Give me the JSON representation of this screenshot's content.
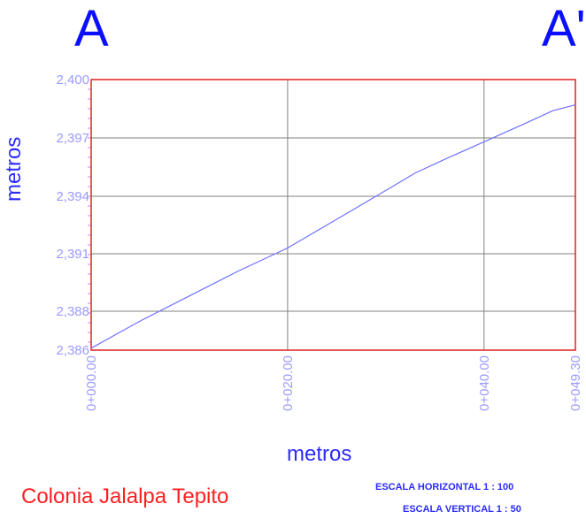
{
  "section": {
    "start_label": "A",
    "end_label": "A'"
  },
  "labels": {
    "ylabel": "metros",
    "xlabel": "metros",
    "place": "Colonia Jalalpa Tepito",
    "scale_horizontal": "ESCALA HORIZONTAL 1 : 100",
    "scale_vertical": "ESCALA VERTICAL 1 : 50"
  },
  "colors": {
    "frame": "#e02020",
    "grid": "#808080",
    "line": "#7070ff",
    "tick_text": "#9a9aff"
  },
  "chart_data": {
    "type": "line",
    "xlabel": "metros",
    "ylabel": "metros",
    "xlim": [
      0,
      49.3
    ],
    "ylim": [
      2386,
      2400
    ],
    "x_ticks": [
      0,
      20,
      40,
      49.3
    ],
    "x_tick_labels": [
      "0+000.00",
      "0+020.00",
      "0+040.00",
      "0+049.30"
    ],
    "y_ticks": [
      2386,
      2388,
      2391,
      2394,
      2397,
      2400
    ],
    "y_tick_labels": [
      "2,386",
      "2,388",
      "2,391",
      "2,394",
      "2,397",
      "2,400"
    ],
    "grid": true,
    "series": [
      {
        "values": [
          [
            0,
            2386.1
          ],
          [
            5,
            2387.5
          ],
          [
            10,
            2388.8
          ],
          [
            15,
            2390.1
          ],
          [
            20,
            2391.3
          ],
          [
            25,
            2392.8
          ],
          [
            30,
            2394.3
          ],
          [
            33,
            2395.2
          ],
          [
            36,
            2395.9
          ],
          [
            40,
            2396.8
          ],
          [
            44,
            2397.7
          ],
          [
            47,
            2398.4
          ],
          [
            49.3,
            2398.7
          ]
        ]
      }
    ]
  }
}
